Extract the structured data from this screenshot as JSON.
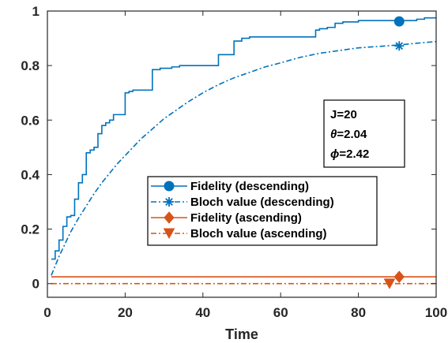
{
  "chart_data": {
    "type": "line",
    "title": "",
    "xlabel": "Time",
    "ylabel": "",
    "xlim": [
      0,
      100
    ],
    "ylim": [
      -0.05,
      1
    ],
    "xticks": [
      0,
      20,
      40,
      60,
      80,
      100
    ],
    "yticks": [
      0,
      0.2,
      0.4,
      0.6,
      0.8,
      1
    ],
    "xtick_labels": [
      "0",
      "20",
      "40",
      "60",
      "80",
      "100"
    ],
    "ytick_labels": [
      "0",
      "0.2",
      "0.4",
      "0.6",
      "0.8",
      "1"
    ],
    "grid": false,
    "legend_position": "center-right",
    "colors": {
      "descending": "#0072BD",
      "ascending": "#D95319"
    },
    "annotation": {
      "lines": [
        {
          "prefix": "J",
          "prefix_italic": false,
          "value": "=20"
        },
        {
          "prefix": "θ",
          "prefix_italic": true,
          "value": "=2.04"
        },
        {
          "prefix": "ϕ",
          "prefix_italic": true,
          "value": "=2.42"
        }
      ]
    },
    "series": [
      {
        "name": "Fidelity (descending)",
        "color": "#0072BD",
        "style": "solid",
        "marker": "circle",
        "marker_x": 90.5,
        "marker_y": 0.962,
        "step": true,
        "x": [
          1,
          2,
          3,
          4,
          5,
          6,
          7,
          8,
          9,
          10,
          11,
          12,
          13,
          14,
          15,
          16,
          17,
          18,
          19,
          20,
          21,
          22,
          23,
          24,
          25,
          26,
          27,
          28,
          29,
          30,
          32,
          34,
          36,
          38,
          40,
          43,
          44,
          45,
          46,
          47,
          48,
          49,
          50,
          52,
          55,
          58,
          60,
          62,
          65,
          68,
          69,
          70,
          72,
          73,
          74,
          76,
          78,
          80,
          85,
          90,
          95,
          97,
          100
        ],
        "y": [
          0.09,
          0.12,
          0.16,
          0.21,
          0.245,
          0.25,
          0.31,
          0.37,
          0.4,
          0.48,
          0.49,
          0.5,
          0.55,
          0.58,
          0.59,
          0.6,
          0.62,
          0.62,
          0.62,
          0.7,
          0.705,
          0.71,
          0.71,
          0.71,
          0.71,
          0.71,
          0.785,
          0.785,
          0.79,
          0.79,
          0.795,
          0.8,
          0.8,
          0.8,
          0.8,
          0.8,
          0.84,
          0.84,
          0.84,
          0.84,
          0.89,
          0.89,
          0.9,
          0.905,
          0.905,
          0.905,
          0.905,
          0.905,
          0.905,
          0.905,
          0.93,
          0.935,
          0.94,
          0.94,
          0.955,
          0.96,
          0.96,
          0.965,
          0.965,
          0.965,
          0.97,
          0.975,
          0.975
        ]
      },
      {
        "name": "Bloch value (descending)",
        "color": "#0072BD",
        "style": "dashdot",
        "marker": "asterisk",
        "marker_x": 90.5,
        "marker_y": 0.872,
        "step": false,
        "x": [
          1,
          2,
          3,
          4,
          5,
          6,
          8,
          10,
          12,
          14,
          16,
          18,
          20,
          22,
          24,
          26,
          28,
          30,
          33,
          36,
          40,
          44,
          48,
          52,
          56,
          60,
          65,
          70,
          75,
          80,
          85,
          90,
          95,
          100
        ],
        "y": [
          0.03,
          0.065,
          0.1,
          0.13,
          0.16,
          0.19,
          0.24,
          0.285,
          0.33,
          0.37,
          0.405,
          0.44,
          0.47,
          0.5,
          0.53,
          0.555,
          0.58,
          0.605,
          0.635,
          0.665,
          0.7,
          0.73,
          0.755,
          0.775,
          0.795,
          0.81,
          0.83,
          0.845,
          0.855,
          0.865,
          0.87,
          0.875,
          0.882,
          0.888
        ]
      },
      {
        "name": "Fidelity (ascending)",
        "color": "#D95319",
        "style": "solid",
        "marker": "diamond",
        "marker_x": 90.5,
        "marker_y": 0.025,
        "step": false,
        "x": [
          1,
          100
        ],
        "y": [
          0.025,
          0.025
        ]
      },
      {
        "name": "Bloch value (ascending)",
        "color": "#D95319",
        "style": "dashdot",
        "marker": "triangle-down",
        "marker_x": 88,
        "marker_y": 0.0,
        "step": false,
        "x": [
          1,
          100
        ],
        "y": [
          0.0,
          0.0
        ]
      }
    ]
  }
}
